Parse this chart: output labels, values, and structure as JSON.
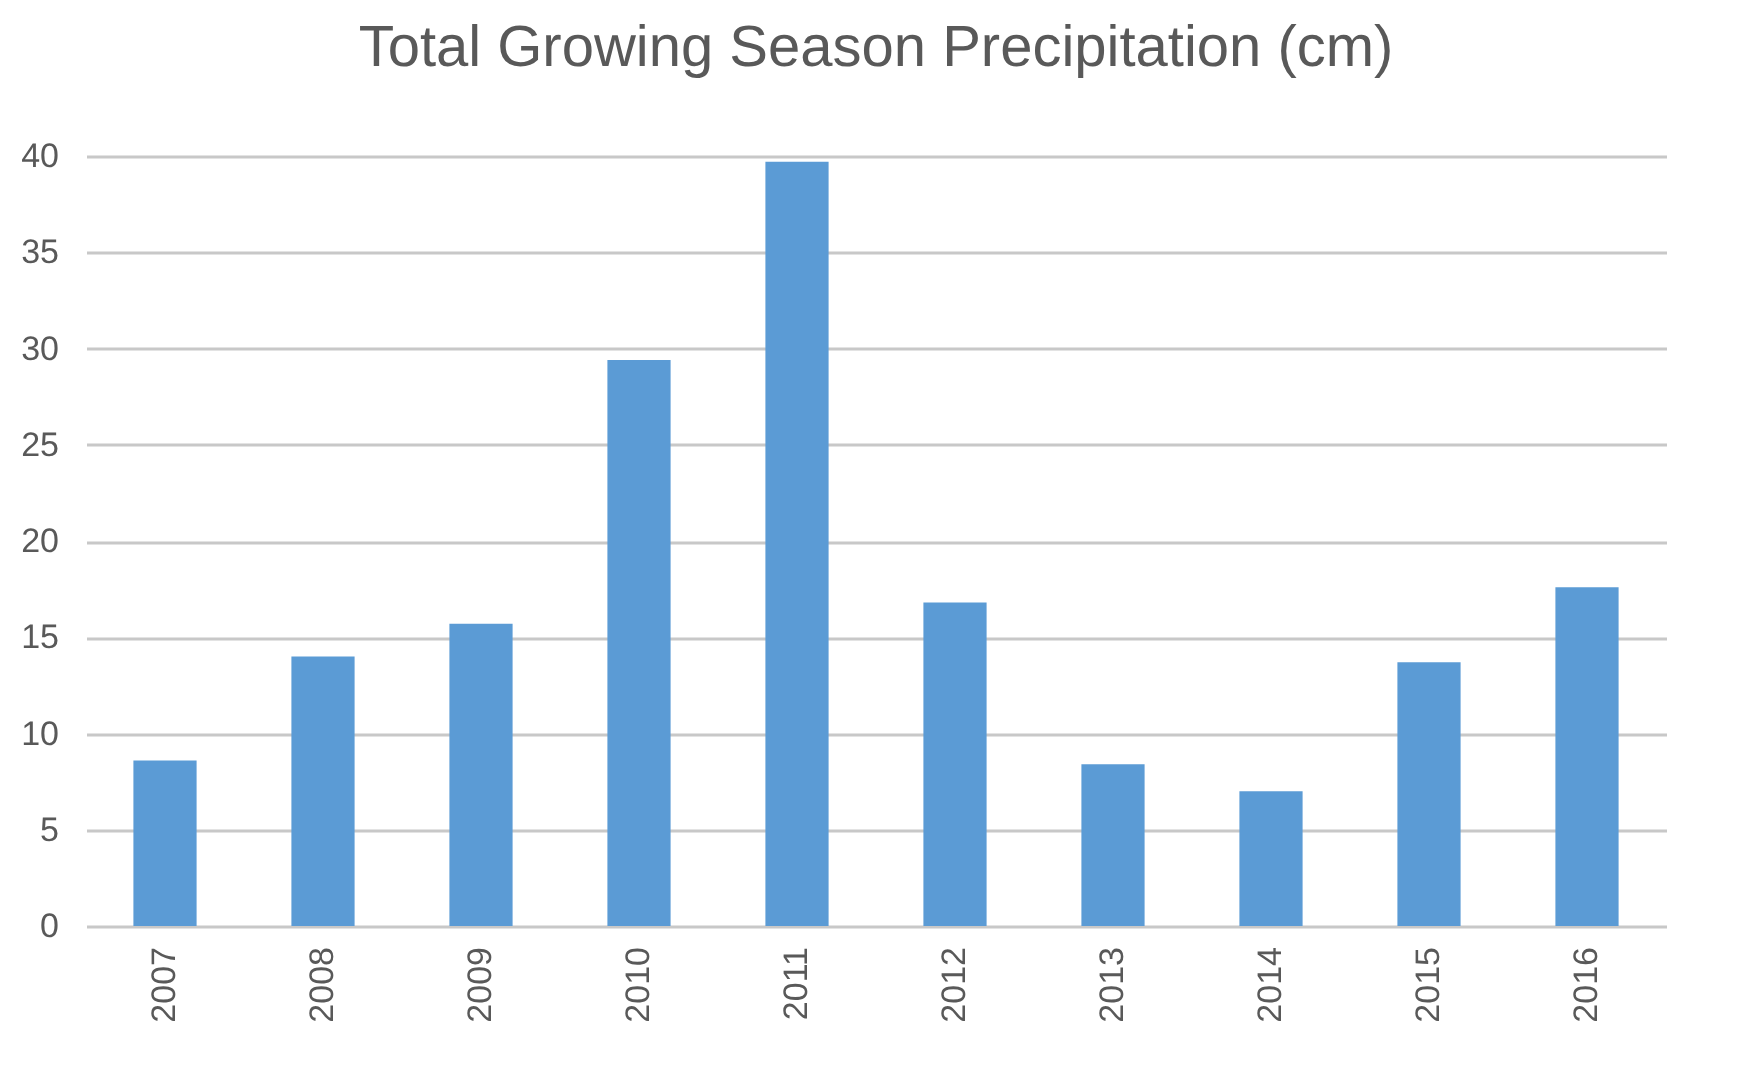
{
  "chart_data": {
    "type": "bar",
    "title": "Total Growing Season Precipitation (cm)",
    "categories": [
      "2007",
      "2008",
      "2009",
      "2010",
      "2011",
      "2012",
      "2013",
      "2014",
      "2015",
      "2016"
    ],
    "values": [
      8.6,
      14.0,
      15.7,
      29.4,
      39.7,
      16.8,
      8.4,
      7.0,
      13.7,
      17.6
    ],
    "color": "#5b9bd5",
    "ylim": [
      0,
      40
    ],
    "yticks": [
      0,
      5,
      10,
      15,
      20,
      25,
      30,
      35,
      40
    ],
    "grid": "y"
  }
}
